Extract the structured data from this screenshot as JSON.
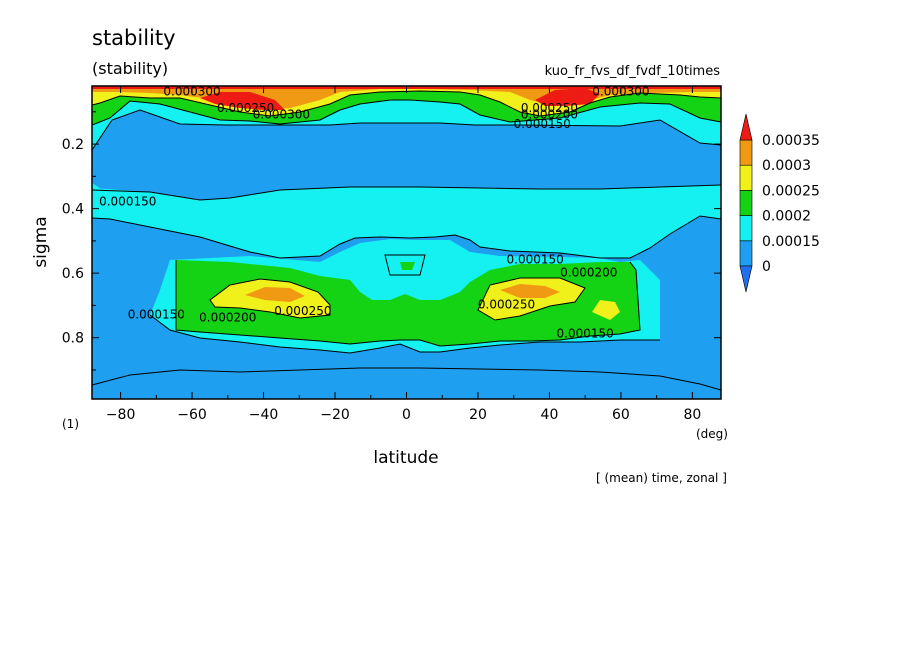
{
  "chart_data": {
    "type": "contour",
    "title": "stability",
    "subtitle": "(stability)",
    "experiment": "kuo_fr_fvs_df_fvdf_10times",
    "xlabel": "latitude",
    "xunit": "(deg)",
    "ylabel": "sigma",
    "yunit": "(1)",
    "footer": "[ (mean) time, zonal ]",
    "xlim": [
      -88,
      88
    ],
    "ylim": [
      0.99,
      0.02
    ],
    "xticks": [
      -80,
      -60,
      -40,
      -20,
      0,
      20,
      40,
      60,
      80
    ],
    "xtick_labels": [
      "−80",
      "−60",
      "−40",
      "−20",
      "0",
      "20",
      "40",
      "60",
      "80"
    ],
    "yticks": [
      0.2,
      0.4,
      0.6,
      0.8
    ],
    "ytick_labels": [
      "0.2",
      "0.4",
      "0.6",
      "0.8"
    ],
    "levels": [
      0,
      0.00015,
      0.0002,
      0.00025,
      0.0003,
      0.00035
    ],
    "level_labels": [
      "0",
      "0.00015",
      "0.0002",
      "0.00025",
      "0.0003",
      "0.00035"
    ],
    "colors": {
      "below_0": "#1f6ff0",
      "b0": "#1e9ff0",
      "b1": "#15f0f0",
      "b2": "#14d314",
      "b3": "#f0f01a",
      "b4": "#f09a14",
      "above": "#ee1b14"
    },
    "contour_labels": [
      {
        "text": "0.000300",
        "lat": -60,
        "sigma": 0.05
      },
      {
        "text": "0.000250",
        "lat": -45,
        "sigma": 0.1
      },
      {
        "text": "0.000300",
        "lat": -35,
        "sigma": 0.12
      },
      {
        "text": "0.000250",
        "lat": 40,
        "sigma": 0.1
      },
      {
        "text": "0.000200",
        "lat": 40,
        "sigma": 0.12
      },
      {
        "text": "0.000300",
        "lat": 60,
        "sigma": 0.05
      },
      {
        "text": "0.000150",
        "lat": 38,
        "sigma": 0.15
      },
      {
        "text": "0.000150",
        "lat": -78,
        "sigma": 0.39
      },
      {
        "text": "0.000150",
        "lat": 36,
        "sigma": 0.57
      },
      {
        "text": "0.000200",
        "lat": 51,
        "sigma": 0.61
      },
      {
        "text": "0.000250",
        "lat": 28,
        "sigma": 0.71
      },
      {
        "text": "0.000150",
        "lat": -70,
        "sigma": 0.74
      },
      {
        "text": "0.000200",
        "lat": -50,
        "sigma": 0.75
      },
      {
        "text": "0.000250",
        "lat": -29,
        "sigma": 0.73
      },
      {
        "text": "0.000150",
        "lat": 50,
        "sigma": 0.8
      }
    ]
  }
}
